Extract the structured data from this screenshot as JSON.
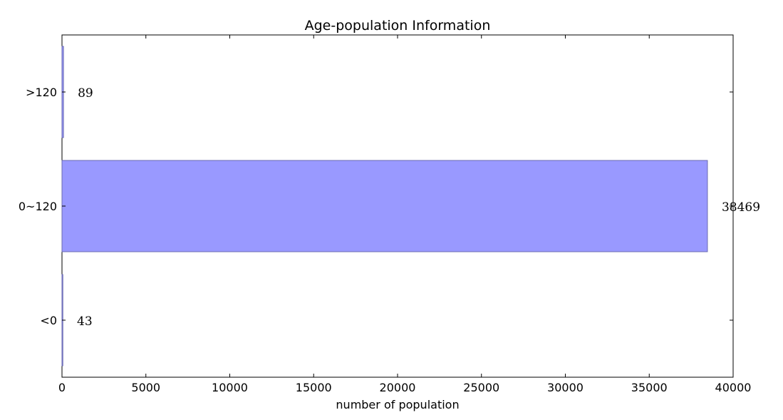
{
  "chart_data": {
    "type": "bar",
    "orientation": "horizontal",
    "title": "Age-population Information",
    "xlabel": "number of population",
    "ylabel": "",
    "categories": [
      "<0",
      "0~120",
      ">120"
    ],
    "values": [
      43,
      38469,
      89
    ],
    "data_labels": [
      "43",
      "38469",
      "89"
    ],
    "xlim": [
      0,
      40000
    ],
    "xticks": [
      0,
      5000,
      10000,
      15000,
      20000,
      25000,
      30000,
      35000,
      40000
    ],
    "xtick_labels": [
      "0",
      "5000",
      "10000",
      "15000",
      "20000",
      "25000",
      "30000",
      "35000",
      "40000"
    ],
    "grid": false,
    "bar_color": "#9999ff",
    "bar_edge_color": "#6a6ab0"
  }
}
